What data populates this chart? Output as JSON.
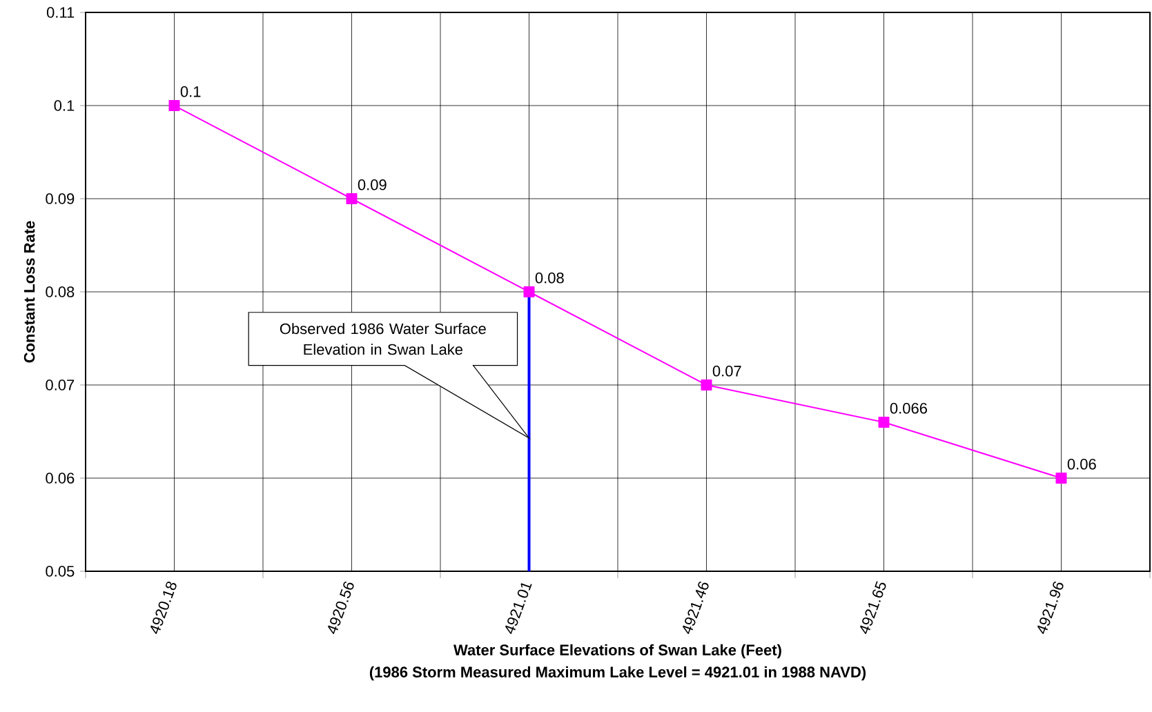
{
  "chart_data": {
    "type": "line",
    "xlabel": "Water Surface Elevations of Swan Lake (Feet)",
    "ylabel": "Constant Loss Rate",
    "annotations": [
      "(1986 Storm Measured Maximum Lake Level = 4921.01 in 1988 NAVD)"
    ],
    "categories": [
      "4920.18",
      "4920.56",
      "4921.01",
      "4921.46",
      "4921.65",
      "4921.96"
    ],
    "values": [
      0.1,
      0.09,
      0.08,
      0.07,
      0.066,
      0.06
    ],
    "color": "#ff00ff",
    "marker": "square",
    "line_style": "solid",
    "data_labels": true,
    "ylim": [
      0.05,
      0.11
    ],
    "yticks": [
      0.05,
      0.06,
      0.07,
      0.08,
      0.09,
      0.1,
      0.11
    ],
    "grid": true,
    "ref_lines": [
      {
        "axis": "x",
        "value": "4921.01",
        "label": "Observed 1986 Water Surface Elevation in Swan Lake",
        "color": "#0000ff"
      }
    ]
  }
}
